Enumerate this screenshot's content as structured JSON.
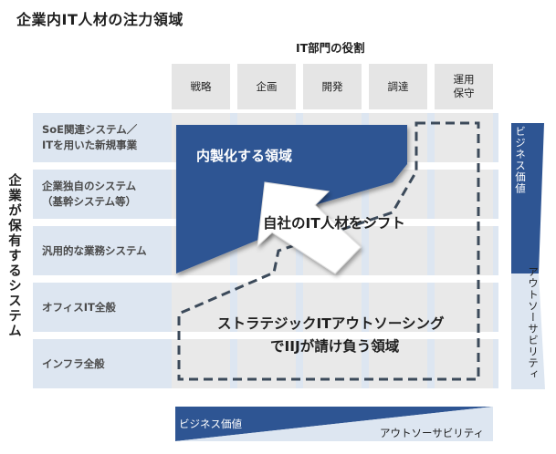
{
  "title": "企業内IT人材の注力領域",
  "it_roles_header": "IT部門の役割",
  "columns": [
    "戦略",
    "企画",
    "開発",
    "調達",
    "運用\n保守"
  ],
  "system_axis_label": "企業が保有するシステム",
  "rows": [
    "SoE関連システム／\nITを用いた新規事業",
    "企業独自のシステム\n（基幹システム等）",
    "汎用的な業務システム",
    "オフィスIT全般",
    "インフラ全般"
  ],
  "areas": {
    "inhouse": "内製化する領域",
    "shift": "自社のIT人材をシフト",
    "outsourcing_line1": "ストラテジックITアウトソーシング",
    "outsourcing_line2": "でIIJが請け負う領域"
  },
  "vertical_bar": {
    "top_label": "ビジネス価値",
    "bottom_label": "アウトソーサビリティ"
  },
  "horizontal_bar": {
    "left_label": "ビジネス価値",
    "right_label": "アウトソーサビリティ"
  },
  "colors": {
    "navy": "#2e5593",
    "row_band": "#dde6f1",
    "cell": "#e9e9e9",
    "header_cell": "#e5e5e5",
    "dash": "#3c4a5a"
  }
}
